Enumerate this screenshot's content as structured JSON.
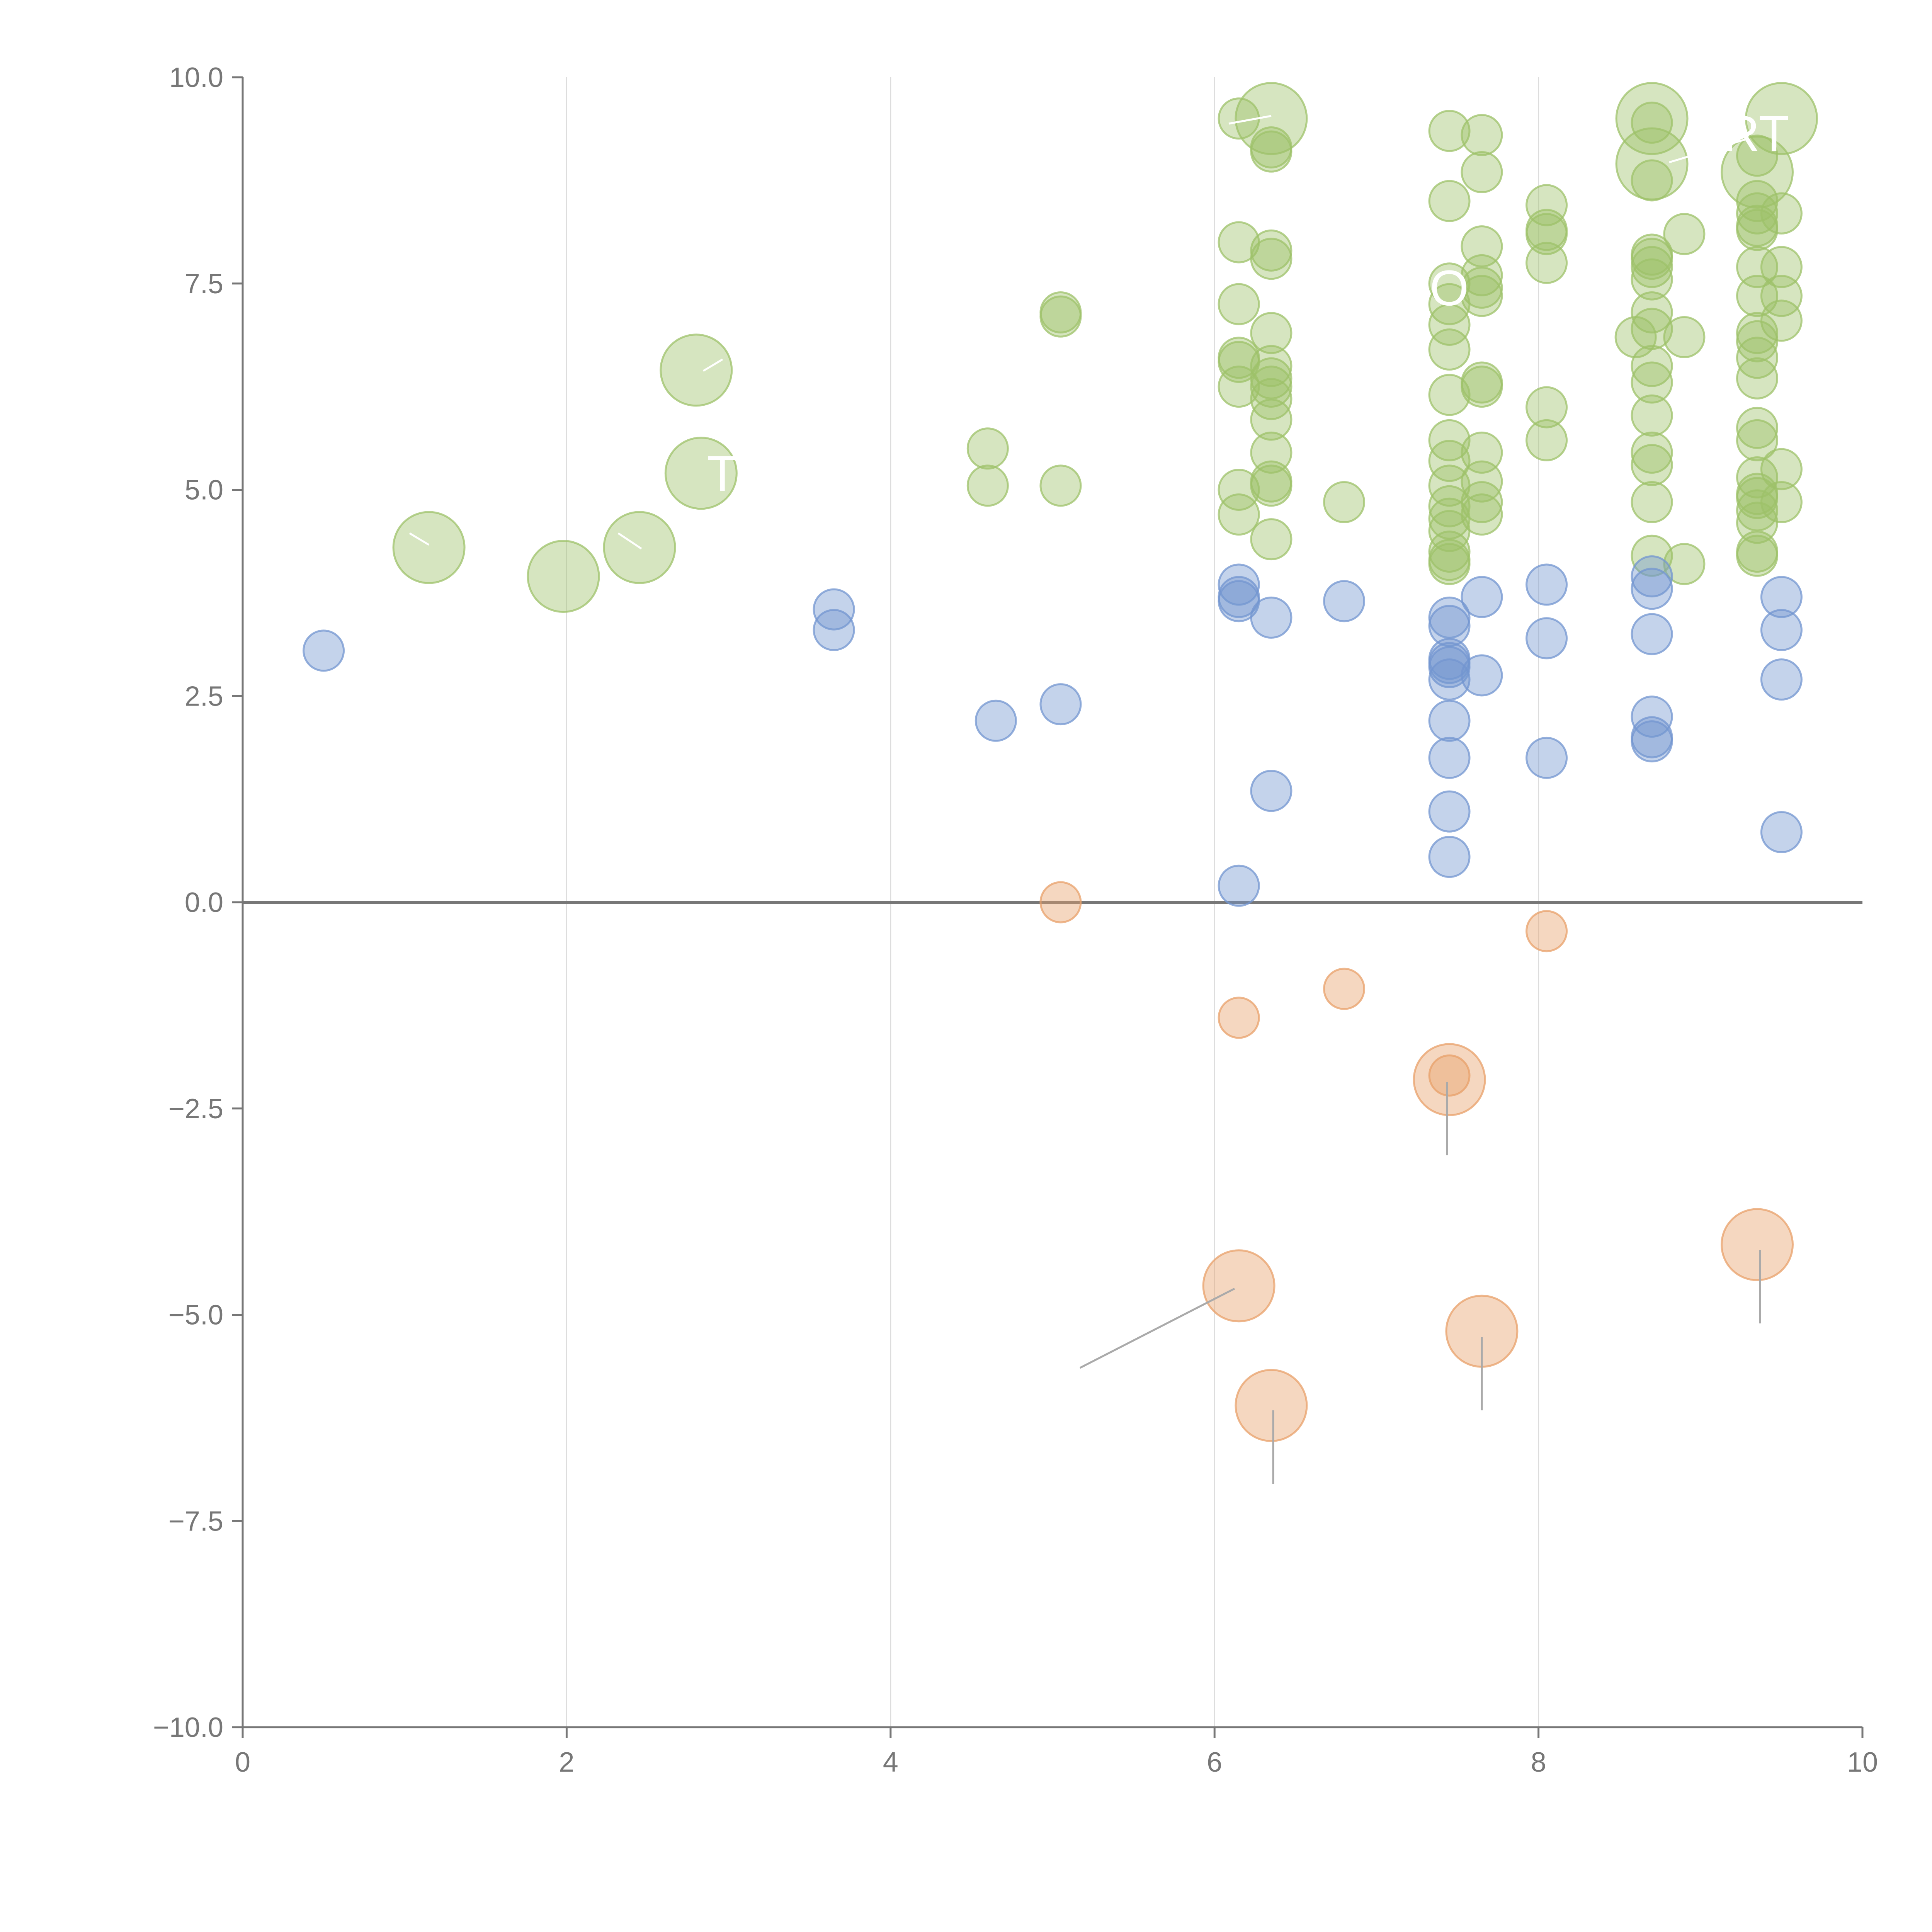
{
  "chart_data": {
    "type": "scatter",
    "title": "",
    "xlabel": "",
    "ylabel": "",
    "xlim": [
      0,
      10
    ],
    "ylim": [
      -10,
      10
    ],
    "x_ticks": [
      0,
      2,
      4,
      6,
      8,
      10
    ],
    "x_tick_labels": [
      "0",
      "2",
      "4",
      "6",
      "8",
      "10"
    ],
    "y_ticks": [
      10,
      7.5,
      5,
      2.5,
      0,
      -2.5,
      -5,
      -7.5,
      -10
    ],
    "y_tick_labels": [
      "10.0",
      "7.5",
      "5.0",
      "2.5",
      "0.0",
      "−2.5",
      "−5.0",
      "−7.5",
      "−10.0"
    ],
    "vertical_grid_at": [
      2,
      4,
      6,
      8
    ],
    "horizontal_reference_line": 0,
    "legend": "none",
    "series": [
      {
        "name": "green",
        "color": "#9dc16a",
        "points": [
          [
            6.15,
            9.5,
            1
          ],
          [
            6.35,
            9.5,
            2
          ],
          [
            6.35,
            9.15,
            1
          ],
          [
            6.35,
            9.1,
            1
          ],
          [
            6.15,
            8.0,
            1
          ],
          [
            6.35,
            7.9,
            1
          ],
          [
            6.35,
            7.8,
            1
          ],
          [
            6.15,
            7.25,
            1
          ],
          [
            6.35,
            6.9,
            1
          ],
          [
            6.15,
            6.6,
            1
          ],
          [
            6.15,
            6.55,
            1
          ],
          [
            6.35,
            6.5,
            1
          ],
          [
            6.35,
            6.35,
            1
          ],
          [
            6.15,
            6.25,
            1
          ],
          [
            6.35,
            6.25,
            1
          ],
          [
            6.35,
            6.1,
            1
          ],
          [
            6.35,
            5.85,
            1
          ],
          [
            6.35,
            5.45,
            1
          ],
          [
            6.35,
            5.1,
            1
          ],
          [
            6.35,
            5.05,
            1
          ],
          [
            6.15,
            5.0,
            1
          ],
          [
            6.15,
            4.7,
            1
          ],
          [
            6.35,
            4.4,
            1
          ],
          [
            6.8,
            4.85,
            1
          ],
          [
            5.05,
            7.15,
            1
          ],
          [
            5.05,
            7.1,
            1
          ],
          [
            4.6,
            5.5,
            1
          ],
          [
            4.6,
            5.05,
            1
          ],
          [
            5.05,
            5.05,
            1
          ],
          [
            7.45,
            9.35,
            1
          ],
          [
            7.65,
            9.3,
            1
          ],
          [
            7.65,
            8.85,
            1
          ],
          [
            7.45,
            8.5,
            1
          ],
          [
            7.65,
            7.95,
            1
          ],
          [
            7.65,
            7.6,
            1
          ],
          [
            7.45,
            7.5,
            1
          ],
          [
            7.65,
            7.45,
            1
          ],
          [
            7.65,
            7.35,
            1
          ],
          [
            7.45,
            7.25,
            1
          ],
          [
            7.45,
            7.0,
            1
          ],
          [
            7.45,
            6.7,
            1
          ],
          [
            7.65,
            6.3,
            1
          ],
          [
            7.65,
            6.25,
            1
          ],
          [
            7.45,
            6.15,
            1
          ],
          [
            7.45,
            5.6,
            1
          ],
          [
            7.65,
            5.45,
            1
          ],
          [
            7.45,
            5.35,
            1
          ],
          [
            7.65,
            5.1,
            1
          ],
          [
            7.45,
            5.05,
            1
          ],
          [
            7.65,
            4.85,
            1
          ],
          [
            7.45,
            4.8,
            1
          ],
          [
            7.65,
            4.7,
            1
          ],
          [
            7.45,
            4.65,
            1
          ],
          [
            7.45,
            4.5,
            1
          ],
          [
            7.45,
            4.25,
            1
          ],
          [
            7.45,
            4.15,
            1
          ],
          [
            7.45,
            4.1,
            1
          ],
          [
            8.05,
            8.45,
            1
          ],
          [
            8.05,
            8.15,
            1
          ],
          [
            8.05,
            8.1,
            1
          ],
          [
            8.05,
            7.75,
            1
          ],
          [
            8.05,
            6.0,
            1
          ],
          [
            8.05,
            5.6,
            1
          ],
          [
            8.7,
            9.5,
            2
          ],
          [
            8.7,
            9.45,
            1
          ],
          [
            8.7,
            8.95,
            2
          ],
          [
            8.7,
            8.75,
            1
          ],
          [
            8.7,
            7.85,
            1
          ],
          [
            8.7,
            7.8,
            1
          ],
          [
            8.7,
            7.7,
            1
          ],
          [
            8.7,
            7.55,
            1
          ],
          [
            8.7,
            7.15,
            1
          ],
          [
            8.7,
            6.95,
            1
          ],
          [
            8.6,
            6.85,
            1
          ],
          [
            8.7,
            6.5,
            1
          ],
          [
            8.7,
            6.3,
            1
          ],
          [
            8.7,
            5.9,
            1
          ],
          [
            8.7,
            5.45,
            1
          ],
          [
            8.7,
            5.3,
            1
          ],
          [
            8.7,
            4.85,
            1
          ],
          [
            8.7,
            4.2,
            1
          ],
          [
            8.9,
            8.1,
            1
          ],
          [
            8.9,
            6.85,
            1
          ],
          [
            8.9,
            4.1,
            1
          ],
          [
            9.5,
            9.5,
            2
          ],
          [
            9.35,
            9.05,
            1
          ],
          [
            9.35,
            8.85,
            2
          ],
          [
            9.35,
            8.5,
            1
          ],
          [
            9.35,
            8.35,
            1
          ],
          [
            9.35,
            8.2,
            1
          ],
          [
            9.35,
            8.15,
            1
          ],
          [
            9.5,
            8.35,
            1
          ],
          [
            9.35,
            7.7,
            1
          ],
          [
            9.5,
            7.7,
            1
          ],
          [
            9.35,
            7.35,
            1
          ],
          [
            9.5,
            7.35,
            1
          ],
          [
            9.5,
            7.05,
            1
          ],
          [
            9.35,
            6.9,
            1
          ],
          [
            9.35,
            6.8,
            1
          ],
          [
            9.35,
            6.6,
            1
          ],
          [
            9.35,
            6.35,
            1
          ],
          [
            9.35,
            5.75,
            1
          ],
          [
            9.35,
            5.6,
            1
          ],
          [
            9.5,
            5.25,
            1
          ],
          [
            9.35,
            5.15,
            1
          ],
          [
            9.35,
            4.95,
            1
          ],
          [
            9.35,
            4.9,
            1
          ],
          [
            9.5,
            4.85,
            1
          ],
          [
            9.35,
            4.75,
            1
          ],
          [
            9.35,
            4.6,
            1
          ],
          [
            9.35,
            4.25,
            1
          ],
          [
            9.35,
            4.2,
            1
          ],
          [
            1.15,
            4.3,
            2
          ],
          [
            1.98,
            3.95,
            2
          ],
          [
            2.45,
            4.3,
            2
          ],
          [
            2.8,
            6.45,
            2
          ],
          [
            2.83,
            5.2,
            2
          ]
        ]
      },
      {
        "name": "blue",
        "color": "#7396d0",
        "points": [
          [
            0.5,
            3.05,
            1
          ],
          [
            3.65,
            3.55,
            1
          ],
          [
            3.65,
            3.3,
            1
          ],
          [
            4.65,
            2.2,
            1
          ],
          [
            5.05,
            2.4,
            1
          ],
          [
            6.15,
            3.85,
            1
          ],
          [
            6.15,
            3.7,
            1
          ],
          [
            6.15,
            3.65,
            1
          ],
          [
            6.35,
            3.45,
            1
          ],
          [
            6.8,
            3.65,
            1
          ],
          [
            6.35,
            1.35,
            1
          ],
          [
            6.15,
            0.2,
            1
          ],
          [
            7.45,
            3.45,
            1
          ],
          [
            7.45,
            3.35,
            1
          ],
          [
            7.45,
            2.95,
            1
          ],
          [
            7.45,
            2.9,
            1
          ],
          [
            7.45,
            2.85,
            1
          ],
          [
            7.45,
            2.7,
            1
          ],
          [
            7.45,
            2.2,
            1
          ],
          [
            7.45,
            1.75,
            1
          ],
          [
            7.45,
            1.1,
            1
          ],
          [
            7.45,
            0.55,
            1
          ],
          [
            7.65,
            3.7,
            1
          ],
          [
            7.65,
            2.75,
            1
          ],
          [
            8.05,
            3.85,
            1
          ],
          [
            8.05,
            3.2,
            1
          ],
          [
            8.05,
            1.75,
            1
          ],
          [
            8.7,
            3.95,
            1
          ],
          [
            8.7,
            3.8,
            1
          ],
          [
            8.7,
            3.25,
            1
          ],
          [
            8.7,
            2.25,
            1
          ],
          [
            8.7,
            2.0,
            1
          ],
          [
            8.7,
            1.95,
            1
          ],
          [
            9.5,
            3.7,
            1
          ],
          [
            9.5,
            3.3,
            1
          ],
          [
            9.5,
            2.7,
            1
          ],
          [
            9.5,
            0.85,
            1
          ]
        ]
      },
      {
        "name": "orange",
        "color": "#e8a06a",
        "points": [
          [
            5.05,
            0.0,
            1
          ],
          [
            6.15,
            -1.4,
            1
          ],
          [
            6.8,
            -1.05,
            1
          ],
          [
            8.05,
            -0.35,
            1
          ],
          [
            7.45,
            -2.1,
            1
          ],
          [
            7.45,
            -2.15,
            2
          ],
          [
            6.15,
            -4.65,
            2
          ],
          [
            6.35,
            -6.1,
            2
          ],
          [
            7.65,
            -5.2,
            2
          ],
          [
            9.35,
            -4.15,
            2
          ]
        ]
      }
    ],
    "annotations": [
      "RT",
      "O",
      "T"
    ]
  }
}
